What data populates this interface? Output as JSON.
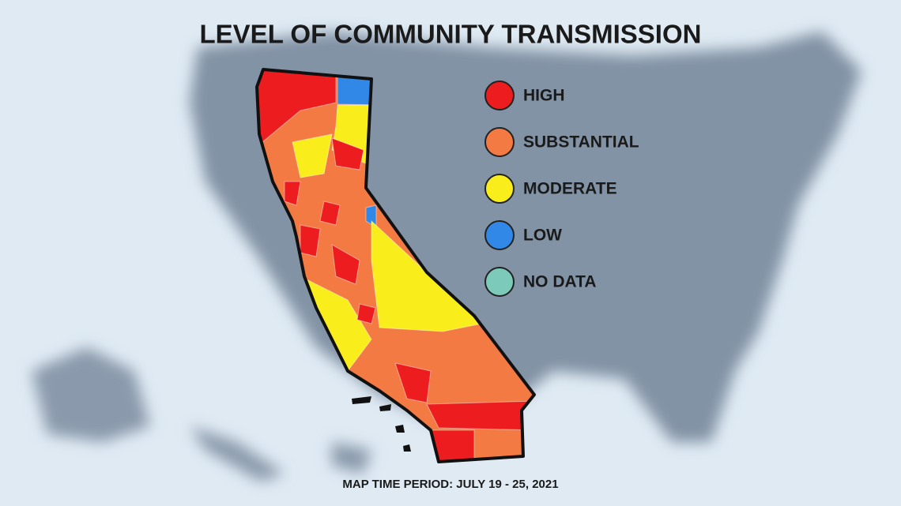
{
  "header": {
    "title": "LEVEL OF COMMUNITY TRANSMISSION"
  },
  "legend": [
    {
      "label": "HIGH",
      "color": "#ec1c1f"
    },
    {
      "label": "SUBSTANTIAL",
      "color": "#f47a43"
    },
    {
      "label": "MODERATE",
      "color": "#f9ee1c"
    },
    {
      "label": "LOW",
      "color": "#3188e6"
    },
    {
      "label": "NO DATA",
      "color": "#7ccab9"
    }
  ],
  "footer": {
    "note": "MAP TIME PERIOD: JULY 19 - 25, 2021"
  }
}
